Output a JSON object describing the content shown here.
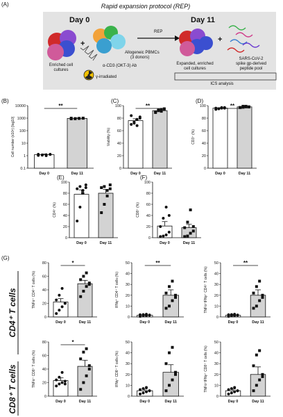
{
  "panel_a": {
    "label": "(A)",
    "title": "Rapid expansion protocol (REP)",
    "day0": "Day 0",
    "day11": "Day 11",
    "rep": "REP",
    "plus": "+",
    "enriched": [
      "Enriched cell",
      "cultures"
    ],
    "pbmc": [
      "Allogeneic PBMCs",
      "(3 donors)"
    ],
    "okt3": "α-CD3 (OKT-3) Ab",
    "irradiated": "γ-irradiated",
    "expanded": [
      "Expanded, enriched",
      "cell cultures"
    ],
    "sars": [
      "SARS-CoV-2",
      "spike gp-derived",
      "peptide pool"
    ],
    "ics": "ICS analysis"
  },
  "group_labels": {
    "cd4": "CD4⁺ T cells",
    "cd8": "CD8⁺ T cells"
  },
  "chart_data": [
    {
      "id": "B",
      "label": "(B)",
      "type": "bar",
      "ylabel": "Cell number (x10⁶) [log10]",
      "scale": "log",
      "ylim": [
        0.1,
        10000
      ],
      "yticks": [
        "0.1",
        "1",
        "10",
        "100",
        "1000",
        "10000"
      ],
      "tickvals": [
        0.1,
        1,
        10,
        100,
        1000,
        10000
      ],
      "categories": [
        "Day 0",
        "Day 11"
      ],
      "values": [
        1.2,
        950
      ],
      "errors": [
        0.15,
        80
      ],
      "points": [
        [
          1.05,
          1.1,
          1.2,
          1.25,
          1.3,
          1.15,
          1.0,
          1.3
        ],
        [
          880,
          920,
          950,
          980,
          1000,
          900,
          960,
          1010
        ]
      ],
      "sig": "**"
    },
    {
      "id": "C",
      "label": "(C)",
      "type": "bar",
      "ylabel": "Viability (%)",
      "ylim": [
        0,
        100
      ],
      "yticks": [
        "0",
        "20",
        "40",
        "60",
        "80",
        "100"
      ],
      "tickvals": [
        0,
        20,
        40,
        60,
        80,
        100
      ],
      "categories": [
        "Day 0",
        "Day 11"
      ],
      "values": [
        76,
        92
      ],
      "errors": [
        3,
        1.5
      ],
      "points": [
        [
          70,
          72,
          78,
          80,
          84,
          74,
          68,
          82
        ],
        [
          90,
          92,
          94,
          95,
          89,
          93,
          91,
          94
        ]
      ],
      "sig": "**"
    },
    {
      "id": "D",
      "label": "(D)",
      "type": "bar",
      "ylabel": "CD3⁺ (%)",
      "ylim": [
        0,
        100
      ],
      "yticks": [
        "0",
        "20",
        "40",
        "60",
        "80",
        "100"
      ],
      "tickvals": [
        0,
        20,
        40,
        60,
        80,
        100
      ],
      "categories": [
        "Day 0",
        "Day 11"
      ],
      "values": [
        96,
        98
      ],
      "errors": [
        0.8,
        0.5
      ],
      "points": [
        [
          94,
          95,
          96,
          97,
          96,
          95,
          97,
          96
        ],
        [
          97,
          98,
          99,
          98,
          97,
          99,
          98,
          98
        ]
      ],
      "sig": "**"
    },
    {
      "id": "E",
      "label": "(E)",
      "type": "bar",
      "ylabel": "CD4⁺ (%)",
      "ylim": [
        0,
        100
      ],
      "yticks": [
        "0",
        "20",
        "40",
        "60",
        "80",
        "100"
      ],
      "tickvals": [
        0,
        20,
        40,
        60,
        80,
        100
      ],
      "categories": [
        "Day 0",
        "Day 11"
      ],
      "values": [
        78,
        80
      ],
      "errors": [
        8,
        7
      ],
      "points": [
        [
          30,
          55,
          85,
          90,
          88,
          92,
          80,
          95
        ],
        [
          45,
          60,
          75,
          88,
          90,
          92,
          85,
          95
        ]
      ],
      "sig": ""
    },
    {
      "id": "F",
      "label": "(F)",
      "type": "bar",
      "ylabel": "CD8⁺ (%)",
      "ylim": [
        0,
        100
      ],
      "yticks": [
        "0",
        "20",
        "40",
        "60",
        "80",
        "100"
      ],
      "tickvals": [
        0,
        20,
        40,
        60,
        80,
        100
      ],
      "categories": [
        "Day 0",
        "Day 11"
      ],
      "values": [
        21,
        18
      ],
      "errors": [
        8,
        6
      ],
      "points": [
        [
          2,
          3,
          5,
          10,
          20,
          35,
          55,
          40
        ],
        [
          2,
          3,
          8,
          12,
          18,
          28,
          50,
          20
        ]
      ],
      "sig": ""
    },
    {
      "id": "G1",
      "label": "(G)",
      "type": "bar",
      "ylabel": "TNFα⁺ CD4⁺ T cells (%)",
      "ylim": [
        0,
        80
      ],
      "yticks": [
        "0",
        "20",
        "40",
        "60",
        "80"
      ],
      "tickvals": [
        0,
        20,
        40,
        60,
        80
      ],
      "categories": [
        "Day 0",
        "Day 11"
      ],
      "values": [
        22,
        49
      ],
      "errors": [
        5,
        5
      ],
      "points": [
        [
          5,
          10,
          15,
          20,
          25,
          32,
          42,
          20
        ],
        [
          30,
          38,
          45,
          50,
          55,
          60,
          65,
          48
        ]
      ],
      "sig": "*"
    },
    {
      "id": "G2",
      "label": "",
      "type": "bar",
      "ylabel": "IFNγ⁺ CD4⁺ T cells (%)",
      "ylim": [
        0,
        50
      ],
      "yticks": [
        "0",
        "10",
        "20",
        "30",
        "40",
        "50"
      ],
      "tickvals": [
        0,
        10,
        20,
        30,
        40,
        50
      ],
      "categories": [
        "Day 0",
        "Day 11"
      ],
      "values": [
        1.5,
        20
      ],
      "errors": [
        0.5,
        5
      ],
      "points": [
        [
          0.5,
          1,
          1.2,
          1.5,
          2,
          2.2,
          2.5,
          1.8
        ],
        [
          8,
          10,
          15,
          18,
          22,
          28,
          33,
          20
        ]
      ],
      "sig": "**"
    },
    {
      "id": "G3",
      "label": "",
      "type": "bar",
      "ylabel": "TNFα⁺IFNγ⁺ CD4⁺ T cells (%)",
      "ylim": [
        0,
        50
      ],
      "yticks": [
        "0",
        "10",
        "20",
        "30",
        "40",
        "50"
      ],
      "tickvals": [
        0,
        10,
        20,
        30,
        40,
        50
      ],
      "categories": [
        "Day 0",
        "Day 11"
      ],
      "values": [
        1.5,
        20
      ],
      "errors": [
        0.5,
        5
      ],
      "points": [
        [
          0.5,
          1,
          1.2,
          1.5,
          2,
          2.2,
          2.5,
          1.8
        ],
        [
          8,
          10,
          15,
          18,
          22,
          28,
          33,
          20
        ]
      ],
      "sig": "**"
    },
    {
      "id": "G4",
      "label": "",
      "type": "bar",
      "ylabel": "TNFα⁺ CD8⁺ T cells (%)",
      "ylim": [
        0,
        80
      ],
      "yticks": [
        "0",
        "20",
        "40",
        "60",
        "80"
      ],
      "tickvals": [
        0,
        20,
        40,
        60,
        80
      ],
      "categories": [
        "Day 0",
        "Day 11"
      ],
      "values": [
        23,
        44
      ],
      "errors": [
        4,
        9
      ],
      "points": [
        [
          15,
          18,
          20,
          22,
          24,
          28,
          35,
          18
        ],
        [
          10,
          20,
          30,
          45,
          55,
          65,
          70,
          40
        ]
      ],
      "sig": "*"
    },
    {
      "id": "G5",
      "label": "",
      "type": "bar",
      "ylabel": "IFNγ⁺ CD8⁺ T cells (%)",
      "ylim": [
        0,
        50
      ],
      "yticks": [
        "0",
        "10",
        "20",
        "30",
        "40",
        "50"
      ],
      "tickvals": [
        0,
        10,
        20,
        30,
        40,
        50
      ],
      "categories": [
        "Day 0",
        "Day 11"
      ],
      "values": [
        5,
        22
      ],
      "errors": [
        1.5,
        7
      ],
      "points": [
        [
          2,
          3,
          4,
          5,
          6,
          7,
          8,
          5
        ],
        [
          5,
          10,
          15,
          22,
          30,
          40,
          45,
          20
        ]
      ],
      "sig": ""
    },
    {
      "id": "G6",
      "label": "",
      "type": "bar",
      "ylabel": "TNFα⁺IFNγ⁺ CD8⁺ T cells (%)",
      "ylim": [
        0,
        50
      ],
      "yticks": [
        "0",
        "10",
        "20",
        "30",
        "40",
        "50"
      ],
      "tickvals": [
        0,
        10,
        20,
        30,
        40,
        50
      ],
      "categories": [
        "Day 0",
        "Day 11"
      ],
      "values": [
        5,
        20
      ],
      "errors": [
        1.5,
        7
      ],
      "points": [
        [
          2,
          3,
          4,
          5,
          6,
          7,
          8,
          5
        ],
        [
          5,
          10,
          15,
          20,
          28,
          38,
          42,
          18
        ]
      ],
      "sig": ""
    }
  ],
  "colors": {
    "bar_day11": "#d3d3d3",
    "bar_day0": "#ffffff",
    "axis": "#111111",
    "schematic_bg": "#e3e3e3"
  }
}
